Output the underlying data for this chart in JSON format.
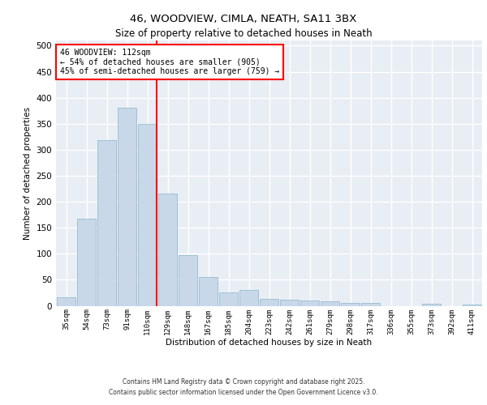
{
  "title_line1": "46, WOODVIEW, CIMLA, NEATH, SA11 3BX",
  "title_line2": "Size of property relative to detached houses in Neath",
  "xlabel": "Distribution of detached houses by size in Neath",
  "ylabel": "Number of detached properties",
  "categories": [
    "35sqm",
    "54sqm",
    "73sqm",
    "91sqm",
    "110sqm",
    "129sqm",
    "148sqm",
    "167sqm",
    "185sqm",
    "204sqm",
    "223sqm",
    "242sqm",
    "261sqm",
    "279sqm",
    "298sqm",
    "317sqm",
    "336sqm",
    "355sqm",
    "373sqm",
    "392sqm",
    "411sqm"
  ],
  "values": [
    16,
    168,
    318,
    380,
    349,
    215,
    97,
    55,
    25,
    30,
    13,
    12,
    10,
    8,
    6,
    5,
    0,
    0,
    4,
    0,
    3
  ],
  "bar_color": "#c8d8e8",
  "bar_edge_color": "#8ab4cc",
  "vline_x_index": 4,
  "vline_color": "red",
  "annotation_title": "46 WOODVIEW: 112sqm",
  "annotation_line1": "← 54% of detached houses are smaller (905)",
  "annotation_line2": "45% of semi-detached houses are larger (759) →",
  "annotation_box_color": "white",
  "annotation_box_edge_color": "red",
  "ylim": [
    0,
    510
  ],
  "yticks": [
    0,
    50,
    100,
    150,
    200,
    250,
    300,
    350,
    400,
    450,
    500
  ],
  "background_color": "#e8eef4",
  "grid_color": "white",
  "footer_line1": "Contains HM Land Registry data © Crown copyright and database right 2025.",
  "footer_line2": "Contains public sector information licensed under the Open Government Licence v3.0."
}
